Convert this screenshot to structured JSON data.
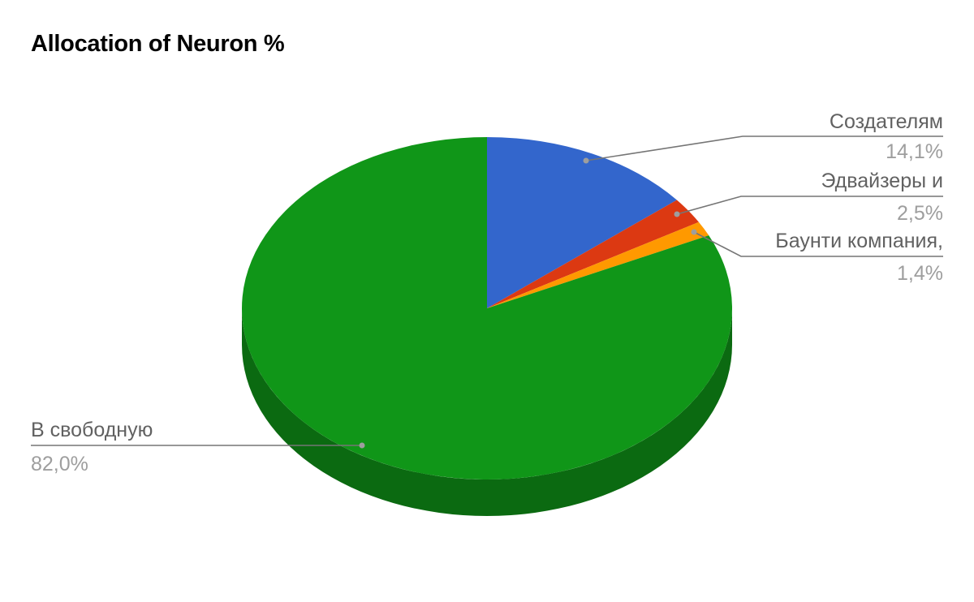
{
  "chart_data": {
    "type": "pie",
    "title": "Allocation of Neuron %",
    "three_d": true,
    "slices": [
      {
        "label": "Создателям",
        "value": 14.1,
        "display": "14,1%",
        "color": "#3366cc"
      },
      {
        "label": "Эдвайзеры и",
        "value": 2.5,
        "display": "2,5%",
        "color": "#dc3912"
      },
      {
        "label": "Баунти компания,",
        "value": 1.4,
        "display": "1,4%",
        "color": "#ff9900"
      },
      {
        "label": "В свободную",
        "value": 82.0,
        "display": "82,0%",
        "color": "#109618"
      }
    ],
    "shadow_colors": [
      "#1f4a9e",
      "#a12a0d",
      "#c77700",
      "#0b6a11"
    ],
    "leader_color": "#757575"
  }
}
